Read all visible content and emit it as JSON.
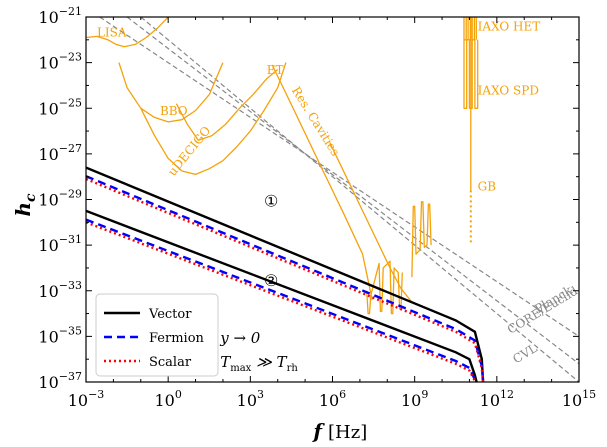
{
  "chart_data": {
    "type": "line",
    "xlabel": "f",
    "xunit": "[Hz]",
    "ylabel": "h_c",
    "xscale": "log",
    "yscale": "log",
    "xlim_exp": [
      -3,
      15
    ],
    "ylim_exp": [
      -37,
      -21
    ],
    "x_ticks": [
      {
        "exp": -3,
        "text": "10",
        "sup": "−3"
      },
      {
        "exp": 0,
        "text": "10",
        "sup": "0"
      },
      {
        "exp": 3,
        "text": "10",
        "sup": "3"
      },
      {
        "exp": 6,
        "text": "10",
        "sup": "6"
      },
      {
        "exp": 9,
        "text": "10",
        "sup": "9"
      },
      {
        "exp": 12,
        "text": "10",
        "sup": "12"
      },
      {
        "exp": 15,
        "text": "10",
        "sup": "15"
      }
    ],
    "y_ticks": [
      {
        "exp": -37,
        "text": "10",
        "sup": "−37"
      },
      {
        "exp": -35,
        "text": "10",
        "sup": "−35"
      },
      {
        "exp": -33,
        "text": "10",
        "sup": "−33"
      },
      {
        "exp": -31,
        "text": "10",
        "sup": "−31"
      },
      {
        "exp": -29,
        "text": "10",
        "sup": "−29"
      },
      {
        "exp": -27,
        "text": "10",
        "sup": "−27"
      },
      {
        "exp": -25,
        "text": "10",
        "sup": "−25"
      },
      {
        "exp": -23,
        "text": "10",
        "sup": "−23"
      },
      {
        "exp": -21,
        "text": "10",
        "sup": "−21"
      }
    ],
    "series": [
      {
        "name": "Vector",
        "group": 1,
        "color": "#000000",
        "dash": "",
        "log10_x": [
          -3,
          10.5,
          11.2,
          11.45,
          11.5
        ],
        "log10_y": [
          -27.6,
          -34.3,
          -34.8,
          -36.0,
          -37.0
        ]
      },
      {
        "name": "Fermion",
        "group": 1,
        "color": "#0000ff",
        "dash": "8,5",
        "log10_x": [
          -3,
          10.5,
          11.2,
          11.45,
          11.5
        ],
        "log10_y": [
          -27.98,
          -34.68,
          -35.18,
          -36.3,
          -37.0
        ]
      },
      {
        "name": "Scalar",
        "group": 1,
        "color": "#ff0000",
        "dash": "2,3",
        "log10_x": [
          -3,
          10.5,
          11.2,
          11.45,
          11.5
        ],
        "log10_y": [
          -28.1,
          -34.8,
          -35.3,
          -36.4,
          -37.0
        ]
      },
      {
        "name": "Vector",
        "group": 2,
        "color": "#000000",
        "dash": "",
        "log10_x": [
          -3,
          10.5,
          11.0,
          11.2,
          11.26
        ],
        "log10_y": [
          -29.5,
          -35.7,
          -36.0,
          -36.7,
          -37.0
        ]
      },
      {
        "name": "Fermion",
        "group": 2,
        "color": "#0000ff",
        "dash": "8,5",
        "log10_x": [
          -3,
          10.5,
          11.0,
          11.2,
          11.26
        ],
        "log10_y": [
          -29.88,
          -36.08,
          -36.38,
          -36.9,
          -37.0
        ]
      },
      {
        "name": "Scalar",
        "group": 2,
        "color": "#ff0000",
        "dash": "2,3",
        "log10_x": [
          -3,
          10.5,
          11.0,
          11.2,
          11.26
        ],
        "log10_y": [
          -30.0,
          -36.2,
          -36.5,
          -36.95,
          -37.0
        ]
      }
    ],
    "reference_lines": [
      {
        "name": "Planck",
        "log10_x": [
          -2.5,
          15
        ],
        "log10_y": [
          -21.0,
          -35.0
        ]
      },
      {
        "name": "CORE/Euclid",
        "log10_x": [
          -1.5,
          15
        ],
        "log10_y": [
          -21.0,
          -36.2
        ]
      },
      {
        "name": "CVL",
        "log10_x": [
          -1.0,
          15
        ],
        "log10_y": [
          -21.0,
          -37.0
        ]
      }
    ],
    "sensitivity_curves": [
      {
        "name": "LISA",
        "log10_x": [
          -3,
          -2.6,
          -2.2,
          -1.9,
          -1.6,
          -1.2,
          -0.8,
          -0.4,
          0
        ],
        "log10_y": [
          -21.9,
          -21.85,
          -22.0,
          -22.2,
          -22.3,
          -22.2,
          -21.9,
          -21.5,
          -21.0
        ]
      },
      {
        "name": "BBO",
        "log10_x": [
          -1.8,
          -1.5,
          -1.0,
          -0.5,
          0,
          0.5,
          1,
          1.5,
          2.0
        ],
        "log10_y": [
          -23.0,
          -24.1,
          -25.0,
          -25.4,
          -25.6,
          -25.5,
          -25.1,
          -24.4,
          -23.0
        ]
      },
      {
        "name": "uDECIGO",
        "log10_x": [
          -1.0,
          -0.5,
          0,
          0.5,
          1.0,
          1.5,
          2,
          2.5,
          3.0,
          3.5,
          4.0,
          4.3
        ],
        "log10_y": [
          -25.0,
          -26.2,
          -27.2,
          -27.75,
          -27.9,
          -27.65,
          -27.3,
          -26.7,
          -26.0,
          -25.1,
          -24.1,
          -23.0
        ]
      },
      {
        "name": "ET",
        "log10_x": [
          0.3,
          0.7,
          1.1,
          1.6,
          2.1,
          2.6,
          3.1,
          3.6,
          4.0
        ],
        "log10_y": [
          -24.8,
          -25.7,
          -26.4,
          -26.2,
          -25.7,
          -25.0,
          -24.4,
          -23.7,
          -23.3
        ]
      },
      {
        "name": "Res. Cavities",
        "log10_x": [
          3.8,
          4.6,
          5.6,
          6.4,
          7.1,
          7.45
        ],
        "log10_y": [
          -23.1,
          -25.1,
          -27.6,
          -29.6,
          -31.4,
          -33.4
        ]
      },
      {
        "name": "Res. Cavities",
        "log10_x": [
          5.9,
          6.5,
          7.1,
          7.7,
          8.1,
          8.5,
          8.9
        ],
        "log10_y": [
          -26.5,
          -28.0,
          -29.5,
          -31.0,
          -32.0,
          -32.9,
          -33.5
        ]
      },
      {
        "name": "Res. Cavities",
        "log10_x": [
          7.25,
          7.3,
          7.35,
          7.4,
          7.7,
          7.75,
          7.8,
          7.85,
          8.1,
          8.15,
          8.2,
          8.25,
          8.4,
          8.45,
          8.5,
          8.55
        ],
        "log10_y": [
          -33.0,
          -34.0,
          -34.0,
          -33.2,
          -31.8,
          -33.9,
          -33.9,
          -32.0,
          -31.7,
          -34.0,
          -34.0,
          -32.0,
          -32.2,
          -33.8,
          -33.8,
          -32.2
        ]
      },
      {
        "name": "Res. Cavities",
        "log10_x": [
          8.9,
          8.95,
          9.0,
          9.05,
          9.2,
          9.25,
          9.3,
          9.35,
          9.45,
          9.5,
          9.55,
          9.6
        ],
        "log10_y": [
          -32.4,
          -29.3,
          -29.3,
          -31.4,
          -31.2,
          -29.1,
          -29.1,
          -31.1,
          -31.0,
          -29.2,
          -29.2,
          -31.0
        ]
      },
      {
        "name": "IAXO HET",
        "log10_x": [
          10.8,
          10.8,
          10.88,
          10.88,
          10.95,
          10.95,
          11.03,
          11.03,
          11.1,
          11.1,
          11.18,
          11.18,
          11.25,
          11.25
        ],
        "log10_y": [
          -21.0,
          -22.0,
          -22.0,
          -21.0,
          -21.0,
          -22.0,
          -22.0,
          -21.0,
          -21.0,
          -22.0,
          -22.0,
          -21.0,
          -21.0,
          -22.0
        ]
      },
      {
        "name": "IAXO SPD",
        "log10_x": [
          10.8,
          10.8,
          10.9,
          10.9,
          11.0,
          11.0,
          11.1,
          11.1,
          11.2,
          11.2,
          11.3,
          11.3
        ],
        "log10_y": [
          -22.0,
          -25.0,
          -25.0,
          -22.0,
          -22.0,
          -25.0,
          -25.0,
          -22.0,
          -22.0,
          -25.0,
          -25.0,
          -22.0
        ]
      },
      {
        "name": "GB",
        "log10_x": [
          11.05,
          11.05
        ],
        "log10_y": [
          -21.0,
          -28.6
        ]
      }
    ],
    "gb_dotted": {
      "log10_x": [
        11.05,
        11.05
      ],
      "log10_y": [
        -28.6,
        -31.0
      ]
    },
    "curve_labels": [
      {
        "text": "LISA",
        "lx": -2.6,
        "ly": -21.85,
        "kind": "det",
        "rot": 0
      },
      {
        "text": "BBO",
        "lx": -0.3,
        "ly": -25.3,
        "kind": "det",
        "rot": 0
      },
      {
        "text": "uDECIGO",
        "lx": 0.2,
        "ly": -28.0,
        "kind": "det",
        "rot": -51
      },
      {
        "text": "ET",
        "lx": 3.6,
        "ly": -23.5,
        "kind": "det",
        "rot": 0
      },
      {
        "text": "Res. Cavities",
        "lx": 4.5,
        "ly": -24.2,
        "kind": "det",
        "rot": 58
      },
      {
        "text": "IAXO HET",
        "lx": 11.3,
        "ly": -21.6,
        "kind": "det",
        "rot": 0
      },
      {
        "text": "IAXO SPD",
        "lx": 11.3,
        "ly": -24.4,
        "kind": "det",
        "rot": 0
      },
      {
        "text": "GB",
        "lx": 11.3,
        "ly": -28.6,
        "kind": "det",
        "rot": 0
      },
      {
        "text": "Planck",
        "lx": 13.5,
        "ly": -34.0,
        "kind": "cmb",
        "rot": -31
      },
      {
        "text": "CORE/Euclid",
        "lx": 12.5,
        "ly": -34.9,
        "kind": "cmb",
        "rot": -31
      },
      {
        "text": "CVL",
        "lx": 12.7,
        "ly": -36.2,
        "kind": "cmb",
        "rot": -31
      }
    ],
    "circled_labels": [
      {
        "text": "①",
        "lx": 3.5,
        "ly": -29.3
      },
      {
        "text": "②",
        "lx": 3.5,
        "ly": -32.8
      }
    ],
    "legend": {
      "position": "lower-left",
      "entries": [
        {
          "label": "Vector",
          "color": "#000000",
          "dash": ""
        },
        {
          "label": "Fermion",
          "color": "#0000ff",
          "dash": "8,5"
        },
        {
          "label": "Scalar",
          "color": "#ff0000",
          "dash": "2,3"
        }
      ]
    },
    "annotations": [
      {
        "main": "y → 0",
        "sub": "",
        "lx": 1.9,
        "ly": -35.3
      },
      {
        "main": "T",
        "sub": "max",
        "main2": " ≫ T",
        "sub2": "rh",
        "lx": 1.9,
        "ly": -36.35
      }
    ]
  },
  "colors": {
    "detector": "#f5a20a",
    "cmb": "#888888",
    "axes": "#000000"
  }
}
